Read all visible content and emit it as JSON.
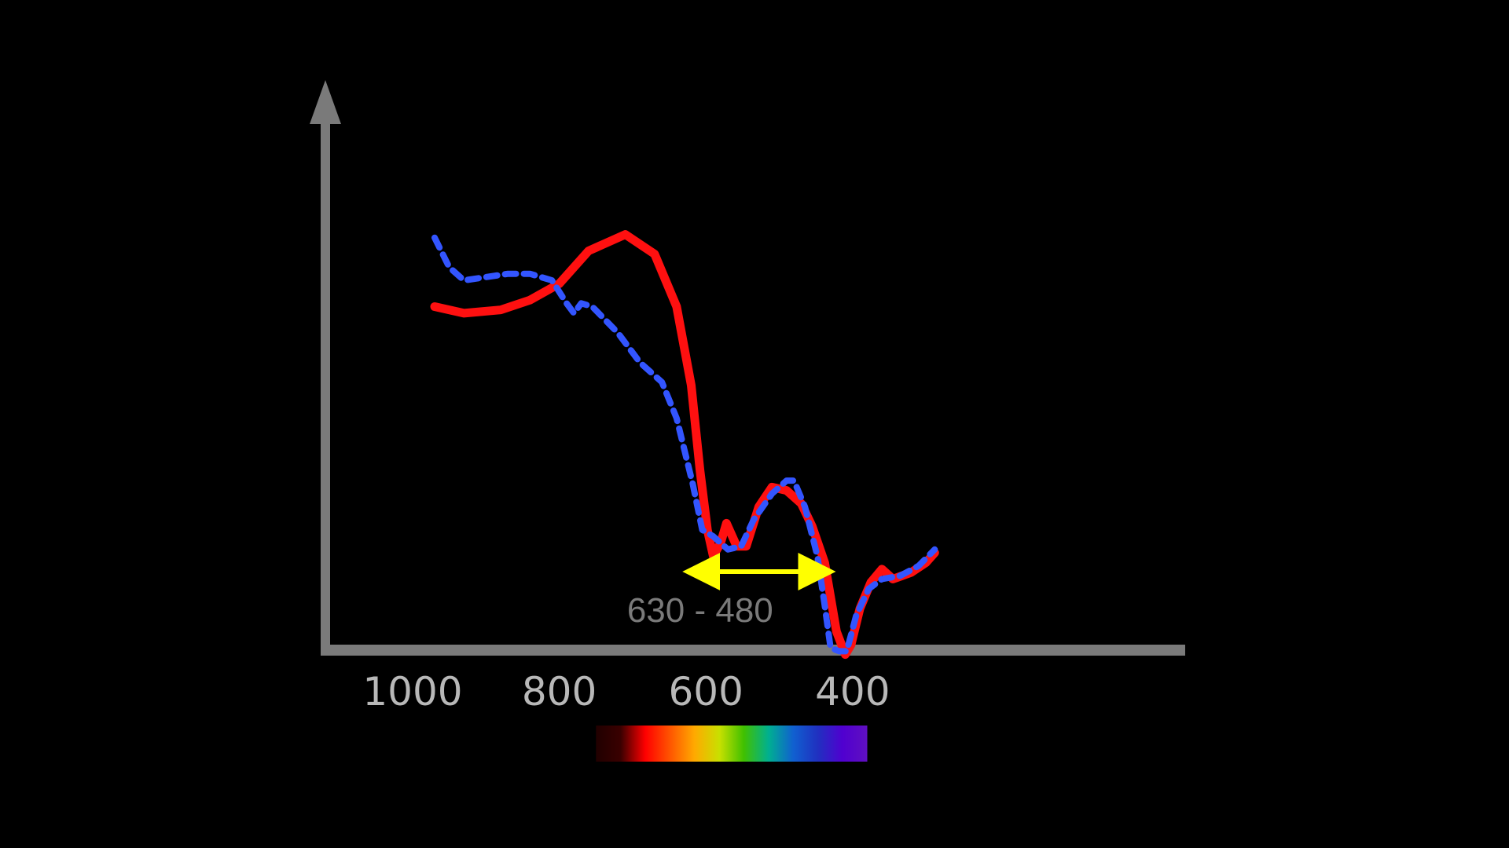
{
  "chart_data": {
    "type": "line",
    "title": "",
    "xlabel": "",
    "ylabel": "",
    "xlim": [
      1030,
      80
    ],
    "x_axis_reversed": true,
    "y_axis_values_shown": false,
    "grid": false,
    "x_ticks": [
      {
        "value": 1000,
        "label": "1000"
      },
      {
        "value": 800,
        "label": "800"
      },
      {
        "value": 600,
        "label": "600"
      },
      {
        "value": 400,
        "label": "400"
      }
    ],
    "series": [
      {
        "color": "#ff1010",
        "style": "solid",
        "points": [
          [
            970,
            0.86
          ],
          [
            930,
            0.84
          ],
          [
            880,
            0.85
          ],
          [
            840,
            0.88
          ],
          [
            800,
            0.93
          ],
          [
            760,
            1.03
          ],
          [
            710,
            1.08
          ],
          [
            670,
            1.02
          ],
          [
            640,
            0.86
          ],
          [
            620,
            0.62
          ],
          [
            608,
            0.36
          ],
          [
            598,
            0.18
          ],
          [
            590,
            0.1
          ],
          [
            580,
            0.14
          ],
          [
            572,
            0.2
          ],
          [
            558,
            0.13
          ],
          [
            545,
            0.13
          ],
          [
            528,
            0.25
          ],
          [
            510,
            0.31
          ],
          [
            490,
            0.3
          ],
          [
            470,
            0.26
          ],
          [
            455,
            0.19
          ],
          [
            438,
            0.08
          ],
          [
            422,
            -0.13
          ],
          [
            410,
            -0.2
          ],
          [
            402,
            -0.17
          ],
          [
            390,
            -0.06
          ],
          [
            375,
            0.02
          ],
          [
            360,
            0.06
          ],
          [
            345,
            0.03
          ],
          [
            320,
            0.05
          ],
          [
            300,
            0.08
          ],
          [
            288,
            0.11
          ]
        ]
      },
      {
        "color": "#3355ff",
        "style": "dashed",
        "points": [
          [
            970,
            1.07
          ],
          [
            950,
            0.98
          ],
          [
            930,
            0.94
          ],
          [
            900,
            0.95
          ],
          [
            870,
            0.96
          ],
          [
            840,
            0.96
          ],
          [
            810,
            0.94
          ],
          [
            790,
            0.87
          ],
          [
            780,
            0.84
          ],
          [
            770,
            0.87
          ],
          [
            755,
            0.86
          ],
          [
            720,
            0.78
          ],
          [
            690,
            0.69
          ],
          [
            660,
            0.63
          ],
          [
            640,
            0.52
          ],
          [
            618,
            0.32
          ],
          [
            605,
            0.18
          ],
          [
            590,
            0.16
          ],
          [
            570,
            0.12
          ],
          [
            552,
            0.13
          ],
          [
            535,
            0.21
          ],
          [
            510,
            0.29
          ],
          [
            490,
            0.33
          ],
          [
            480,
            0.33
          ],
          [
            465,
            0.25
          ],
          [
            448,
            0.1
          ],
          [
            438,
            -0.05
          ],
          [
            430,
            -0.18
          ],
          [
            418,
            -0.19
          ],
          [
            408,
            -0.19
          ],
          [
            395,
            -0.08
          ],
          [
            378,
            0.0
          ],
          [
            360,
            0.03
          ],
          [
            335,
            0.04
          ],
          [
            310,
            0.07
          ],
          [
            288,
            0.12
          ]
        ]
      }
    ],
    "annotation": {
      "label": "630 - 480",
      "arrow_color": "#ffff00",
      "from": 630,
      "to": 425
    },
    "colorbar": {
      "range": [
        750,
        380
      ],
      "stops": [
        "#200000",
        "#3a0000",
        "#ff0000",
        "#ff5500",
        "#ffaa00",
        "#c8e000",
        "#40c000",
        "#00b090",
        "#1060d0",
        "#2030c0",
        "#5000d0",
        "#6010c0"
      ]
    },
    "axis_color": "#7a7a7a"
  }
}
